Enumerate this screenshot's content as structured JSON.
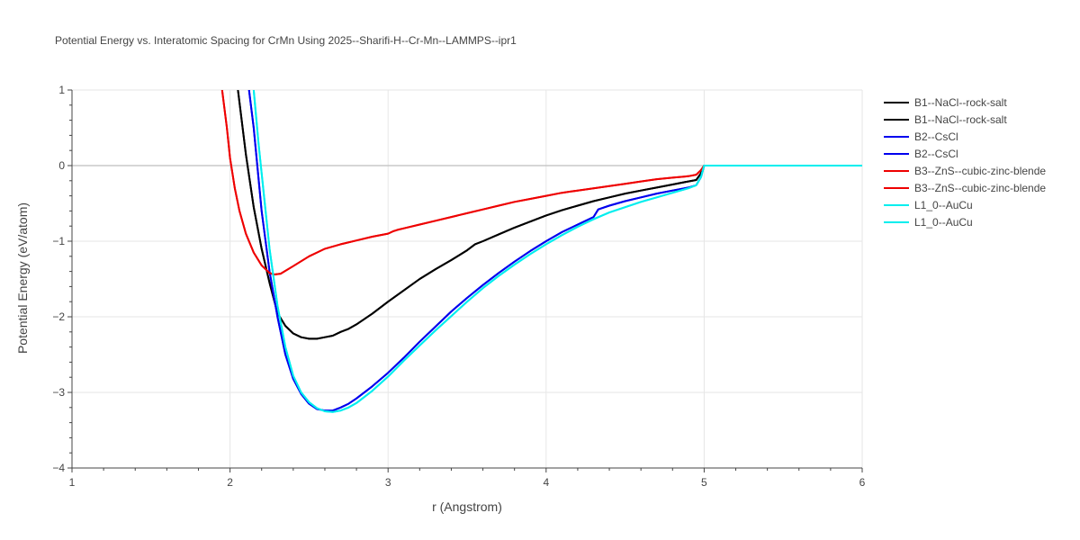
{
  "chart_data": {
    "type": "line",
    "title": "Potential Energy vs. Interatomic Spacing for CrMn Using 2025--Sharifi-H--Cr-Mn--LAMMPS--ipr1",
    "xlabel": "r (Angstrom)",
    "ylabel": "Potential Energy (eV/atom)",
    "xlim": [
      1,
      6
    ],
    "ylim": [
      -4,
      1
    ],
    "xticks": [
      1,
      2,
      3,
      4,
      5,
      6
    ],
    "yticks": [
      1,
      0,
      -1,
      -2,
      -3,
      -4
    ],
    "ytick_labels": [
      "1",
      "0",
      "−1",
      "−2",
      "−3",
      "−4"
    ],
    "grid": true,
    "legend_position": "right",
    "series": [
      {
        "name": "B1--NaCl--rock-salt",
        "color": "#000000",
        "x": [
          2.05,
          2.1,
          2.15,
          2.2,
          2.25,
          2.3,
          2.35,
          2.4,
          2.45,
          2.5,
          2.55,
          2.6,
          2.65,
          2.7,
          2.75,
          2.8,
          2.9,
          3.0,
          3.1,
          3.2,
          3.3,
          3.4,
          3.5,
          3.55,
          3.6,
          3.7,
          3.8,
          3.9,
          4.0,
          4.1,
          4.2,
          4.3,
          4.4,
          4.5,
          4.6,
          4.7,
          4.8,
          4.9,
          4.95,
          4.98,
          5.0,
          5.2,
          5.5,
          6.0
        ],
        "y": [
          1.0,
          0.15,
          -0.55,
          -1.1,
          -1.55,
          -1.95,
          -2.12,
          -2.22,
          -2.27,
          -2.29,
          -2.29,
          -2.27,
          -2.25,
          -2.2,
          -2.16,
          -2.1,
          -1.96,
          -1.8,
          -1.65,
          -1.5,
          -1.37,
          -1.25,
          -1.12,
          -1.04,
          -1.0,
          -0.91,
          -0.82,
          -0.74,
          -0.66,
          -0.59,
          -0.53,
          -0.47,
          -0.42,
          -0.37,
          -0.33,
          -0.29,
          -0.25,
          -0.21,
          -0.19,
          -0.1,
          0,
          0,
          0,
          0
        ]
      },
      {
        "name": "B1--NaCl--rock-salt",
        "color": "#000000",
        "x": [
          2.05,
          2.1,
          2.15,
          2.2,
          2.25,
          2.3,
          2.35,
          2.4,
          2.45,
          2.5,
          2.55,
          2.6,
          2.65,
          2.7,
          2.75,
          2.8,
          2.9,
          3.0,
          3.1,
          3.2,
          3.3,
          3.4,
          3.5,
          3.55,
          3.6,
          3.7,
          3.8,
          3.9,
          4.0,
          4.1,
          4.2,
          4.3,
          4.4,
          4.5,
          4.6,
          4.7,
          4.8,
          4.9,
          4.95,
          4.98,
          5.0,
          5.2,
          5.5,
          6.0
        ],
        "y": [
          1.0,
          0.15,
          -0.55,
          -1.1,
          -1.55,
          -1.95,
          -2.12,
          -2.22,
          -2.27,
          -2.29,
          -2.29,
          -2.27,
          -2.25,
          -2.2,
          -2.16,
          -2.1,
          -1.96,
          -1.8,
          -1.65,
          -1.5,
          -1.37,
          -1.25,
          -1.12,
          -1.04,
          -1.0,
          -0.91,
          -0.82,
          -0.74,
          -0.66,
          -0.59,
          -0.53,
          -0.47,
          -0.42,
          -0.37,
          -0.33,
          -0.29,
          -0.25,
          -0.21,
          -0.19,
          -0.1,
          0,
          0,
          0,
          0
        ]
      },
      {
        "name": "B2--CsCl",
        "color": "#0000ee",
        "x": [
          2.12,
          2.15,
          2.2,
          2.25,
          2.3,
          2.35,
          2.4,
          2.45,
          2.5,
          2.55,
          2.6,
          2.65,
          2.7,
          2.75,
          2.8,
          2.9,
          3.0,
          3.1,
          3.2,
          3.3,
          3.4,
          3.5,
          3.6,
          3.7,
          3.8,
          3.9,
          4.0,
          4.1,
          4.2,
          4.3,
          4.33,
          4.4,
          4.5,
          4.6,
          4.7,
          4.8,
          4.9,
          4.95,
          4.98,
          5.0,
          5.2,
          5.5,
          6.0
        ],
        "y": [
          1.0,
          0.5,
          -0.6,
          -1.4,
          -2.0,
          -2.5,
          -2.82,
          -3.02,
          -3.15,
          -3.22,
          -3.24,
          -3.24,
          -3.2,
          -3.15,
          -3.08,
          -2.92,
          -2.74,
          -2.54,
          -2.33,
          -2.13,
          -1.93,
          -1.75,
          -1.58,
          -1.42,
          -1.27,
          -1.13,
          -1.0,
          -0.88,
          -0.78,
          -0.68,
          -0.58,
          -0.53,
          -0.47,
          -0.42,
          -0.37,
          -0.33,
          -0.29,
          -0.26,
          -0.15,
          0,
          0,
          0,
          0
        ]
      },
      {
        "name": "B2--CsCl",
        "color": "#0000ee",
        "x": [
          2.12,
          2.15,
          2.2,
          2.25,
          2.3,
          2.35,
          2.4,
          2.45,
          2.5,
          2.55,
          2.6,
          2.65,
          2.7,
          2.75,
          2.8,
          2.9,
          3.0,
          3.1,
          3.2,
          3.3,
          3.4,
          3.5,
          3.6,
          3.7,
          3.8,
          3.9,
          4.0,
          4.1,
          4.2,
          4.3,
          4.33,
          4.4,
          4.5,
          4.6,
          4.7,
          4.8,
          4.9,
          4.95,
          4.98,
          5.0,
          5.2,
          5.5,
          6.0
        ],
        "y": [
          1.0,
          0.5,
          -0.6,
          -1.4,
          -2.0,
          -2.5,
          -2.82,
          -3.02,
          -3.15,
          -3.22,
          -3.24,
          -3.24,
          -3.2,
          -3.15,
          -3.08,
          -2.92,
          -2.74,
          -2.54,
          -2.33,
          -2.13,
          -1.93,
          -1.75,
          -1.58,
          -1.42,
          -1.27,
          -1.13,
          -1.0,
          -0.88,
          -0.78,
          -0.68,
          -0.58,
          -0.53,
          -0.47,
          -0.42,
          -0.37,
          -0.33,
          -0.29,
          -0.26,
          -0.15,
          0,
          0,
          0,
          0
        ]
      },
      {
        "name": "B3--ZnS--cubic-zinc-blende",
        "color": "#ee0000",
        "x": [
          1.95,
          1.98,
          2.0,
          2.03,
          2.06,
          2.1,
          2.15,
          2.2,
          2.25,
          2.28,
          2.32,
          2.4,
          2.5,
          2.55,
          2.6,
          2.7,
          2.8,
          2.9,
          3.0,
          3.03,
          3.06,
          3.1,
          3.2,
          3.3,
          3.4,
          3.5,
          3.6,
          3.7,
          3.8,
          3.9,
          4.0,
          4.1,
          4.2,
          4.3,
          4.4,
          4.5,
          4.6,
          4.7,
          4.8,
          4.9,
          4.95,
          4.98,
          5.0,
          5.2,
          5.5,
          6.0
        ],
        "y": [
          1.0,
          0.5,
          0.1,
          -0.3,
          -0.6,
          -0.9,
          -1.15,
          -1.32,
          -1.42,
          -1.44,
          -1.43,
          -1.33,
          -1.2,
          -1.15,
          -1.1,
          -1.04,
          -0.99,
          -0.94,
          -0.9,
          -0.87,
          -0.85,
          -0.83,
          -0.78,
          -0.73,
          -0.68,
          -0.63,
          -0.58,
          -0.53,
          -0.48,
          -0.44,
          -0.4,
          -0.36,
          -0.33,
          -0.3,
          -0.27,
          -0.24,
          -0.21,
          -0.18,
          -0.16,
          -0.14,
          -0.12,
          -0.06,
          0,
          0,
          0,
          0
        ]
      },
      {
        "name": "B3--ZnS--cubic-zinc-blende",
        "color": "#ee0000",
        "x": [
          1.95,
          1.98,
          2.0,
          2.03,
          2.06,
          2.1,
          2.15,
          2.2,
          2.25,
          2.28,
          2.32,
          2.4,
          2.5,
          2.55,
          2.6,
          2.7,
          2.8,
          2.9,
          3.0,
          3.03,
          3.06,
          3.1,
          3.2,
          3.3,
          3.4,
          3.5,
          3.6,
          3.7,
          3.8,
          3.9,
          4.0,
          4.1,
          4.2,
          4.3,
          4.4,
          4.5,
          4.6,
          4.7,
          4.8,
          4.9,
          4.95,
          4.98,
          5.0,
          5.2,
          5.5,
          6.0
        ],
        "y": [
          1.0,
          0.5,
          0.1,
          -0.3,
          -0.6,
          -0.9,
          -1.15,
          -1.32,
          -1.42,
          -1.44,
          -1.43,
          -1.33,
          -1.2,
          -1.15,
          -1.1,
          -1.04,
          -0.99,
          -0.94,
          -0.9,
          -0.87,
          -0.85,
          -0.83,
          -0.78,
          -0.73,
          -0.68,
          -0.63,
          -0.58,
          -0.53,
          -0.48,
          -0.44,
          -0.4,
          -0.36,
          -0.33,
          -0.3,
          -0.27,
          -0.24,
          -0.21,
          -0.18,
          -0.16,
          -0.14,
          -0.12,
          -0.06,
          0,
          0,
          0,
          0
        ]
      },
      {
        "name": "L1_0--AuCu",
        "color": "#00eeee",
        "x": [
          2.15,
          2.18,
          2.2,
          2.25,
          2.3,
          2.35,
          2.4,
          2.45,
          2.5,
          2.55,
          2.6,
          2.65,
          2.7,
          2.75,
          2.8,
          2.9,
          3.0,
          3.1,
          3.2,
          3.3,
          3.4,
          3.5,
          3.6,
          3.7,
          3.8,
          3.9,
          4.0,
          4.1,
          4.2,
          4.3,
          4.4,
          4.5,
          4.6,
          4.7,
          4.8,
          4.9,
          4.95,
          4.98,
          5.0,
          5.2,
          5.5,
          6.0
        ],
        "y": [
          1.0,
          0.3,
          -0.1,
          -1.1,
          -1.85,
          -2.4,
          -2.78,
          -3.0,
          -3.13,
          -3.21,
          -3.25,
          -3.26,
          -3.24,
          -3.2,
          -3.14,
          -2.98,
          -2.79,
          -2.58,
          -2.38,
          -2.18,
          -1.99,
          -1.8,
          -1.62,
          -1.46,
          -1.31,
          -1.17,
          -1.04,
          -0.92,
          -0.81,
          -0.71,
          -0.62,
          -0.55,
          -0.48,
          -0.42,
          -0.36,
          -0.3,
          -0.26,
          -0.15,
          0,
          0,
          0,
          0
        ]
      },
      {
        "name": "L1_0--AuCu",
        "color": "#00eeee",
        "x": [
          2.15,
          2.18,
          2.2,
          2.25,
          2.3,
          2.35,
          2.4,
          2.45,
          2.5,
          2.55,
          2.6,
          2.65,
          2.7,
          2.75,
          2.8,
          2.9,
          3.0,
          3.1,
          3.2,
          3.3,
          3.4,
          3.5,
          3.6,
          3.7,
          3.8,
          3.9,
          4.0,
          4.1,
          4.2,
          4.3,
          4.4,
          4.5,
          4.6,
          4.7,
          4.8,
          4.9,
          4.95,
          4.98,
          5.0,
          5.2,
          5.5,
          6.0
        ],
        "y": [
          1.0,
          0.3,
          -0.1,
          -1.1,
          -1.85,
          -2.4,
          -2.78,
          -3.0,
          -3.13,
          -3.21,
          -3.25,
          -3.26,
          -3.24,
          -3.2,
          -3.14,
          -2.98,
          -2.79,
          -2.58,
          -2.38,
          -2.18,
          -1.99,
          -1.8,
          -1.62,
          -1.46,
          -1.31,
          -1.17,
          -1.04,
          -0.92,
          -0.81,
          -0.71,
          -0.62,
          -0.55,
          -0.48,
          -0.42,
          -0.36,
          -0.3,
          -0.26,
          -0.15,
          0,
          0,
          0,
          0
        ]
      }
    ]
  }
}
